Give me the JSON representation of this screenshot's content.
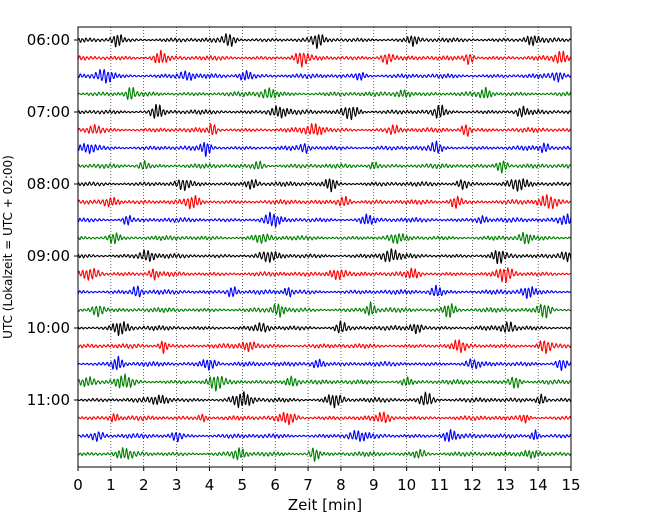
{
  "chart_data": {
    "type": "line",
    "title": "",
    "xlabel": "Zeit  [min]",
    "ylabel": "UTC (Lokalzeit = UTC + 02:00)",
    "xlim": [
      0,
      15
    ],
    "x_ticks": [
      "0",
      "1",
      "2",
      "3",
      "4",
      "5",
      "6",
      "7",
      "8",
      "9",
      "10",
      "11",
      "12",
      "13",
      "14",
      "15"
    ],
    "y_tick_labels": [
      "06:00",
      "07:00",
      "08:00",
      "09:00",
      "10:00",
      "11:00"
    ],
    "grid": "vertical dotted",
    "trace_start": "06:00",
    "trace_interval_min": 15,
    "trace_count": 24,
    "trace_colors": [
      "#000000",
      "#ff0000",
      "#0000ff",
      "#008000"
    ],
    "series": [
      {
        "start": "06:00",
        "color": "#000000",
        "bursts": [
          1.2,
          4.6,
          7.3,
          10.2,
          13.8
        ]
      },
      {
        "start": "06:15",
        "color": "#ff0000",
        "bursts": [
          2.5,
          6.8,
          9.4,
          11.9,
          14.7
        ]
      },
      {
        "start": "06:30",
        "color": "#0000ff",
        "bursts": [
          0.8,
          3.3,
          5.1,
          8.6,
          14.6
        ]
      },
      {
        "start": "06:45",
        "color": "#008000",
        "bursts": [
          1.6,
          5.8,
          9.9,
          12.4
        ]
      },
      {
        "start": "07:00",
        "color": "#000000",
        "bursts": [
          2.4,
          6.1,
          8.3,
          11.0,
          13.5
        ]
      },
      {
        "start": "07:15",
        "color": "#ff0000",
        "bursts": [
          0.5,
          4.1,
          7.2,
          9.6,
          11.8
        ]
      },
      {
        "start": "07:30",
        "color": "#0000ff",
        "bursts": [
          0.3,
          3.9,
          6.9,
          10.9,
          14.2
        ]
      },
      {
        "start": "07:45",
        "color": "#008000",
        "bursts": [
          2.0,
          5.5,
          9.0,
          12.9
        ]
      },
      {
        "start": "08:00",
        "color": "#000000",
        "bursts": [
          3.2,
          5.3,
          7.7,
          11.7,
          13.4
        ]
      },
      {
        "start": "08:15",
        "color": "#ff0000",
        "bursts": [
          1.0,
          3.5,
          8.1,
          11.5,
          14.3
        ]
      },
      {
        "start": "08:30",
        "color": "#0000ff",
        "bursts": [
          1.5,
          5.9,
          8.8,
          12.3,
          14.9
        ]
      },
      {
        "start": "08:45",
        "color": "#008000",
        "bursts": [
          1.1,
          5.6,
          9.7,
          13.6
        ]
      },
      {
        "start": "09:00",
        "color": "#000000",
        "bursts": [
          2.1,
          5.8,
          9.5,
          12.8,
          14.9
        ]
      },
      {
        "start": "09:15",
        "color": "#ff0000",
        "bursts": [
          0.4,
          2.3,
          7.9,
          10.2,
          13.0
        ]
      },
      {
        "start": "09:30",
        "color": "#0000ff",
        "bursts": [
          1.8,
          4.7,
          6.4,
          10.9,
          13.7
        ]
      },
      {
        "start": "09:45",
        "color": "#008000",
        "bursts": [
          0.6,
          6.1,
          8.9,
          11.3,
          14.2
        ]
      },
      {
        "start": "10:00",
        "color": "#000000",
        "bursts": [
          1.3,
          5.6,
          8.0,
          10.3,
          13.1
        ]
      },
      {
        "start": "10:15",
        "color": "#ff0000",
        "bursts": [
          2.6,
          5.2,
          11.6,
          14.2
        ]
      },
      {
        "start": "10:30",
        "color": "#0000ff",
        "bursts": [
          1.2,
          4.0,
          7.3,
          12.0,
          14.7
        ]
      },
      {
        "start": "10:45",
        "color": "#008000",
        "bursts": [
          0.3,
          1.4,
          4.2,
          6.5,
          10.0,
          13.3
        ]
      },
      {
        "start": "11:00",
        "color": "#000000",
        "bursts": [
          2.5,
          5.0,
          7.8,
          10.6,
          14.1
        ]
      },
      {
        "start": "11:15",
        "color": "#ff0000",
        "bursts": [
          1.1,
          3.8,
          6.4,
          9.3,
          13.6
        ]
      },
      {
        "start": "11:30",
        "color": "#0000ff",
        "bursts": [
          0.6,
          3.0,
          8.5,
          11.3,
          13.9
        ]
      },
      {
        "start": "11:45",
        "color": "#008000",
        "bursts": [
          1.4,
          4.9,
          7.2,
          10.4,
          13.8
        ]
      }
    ]
  }
}
